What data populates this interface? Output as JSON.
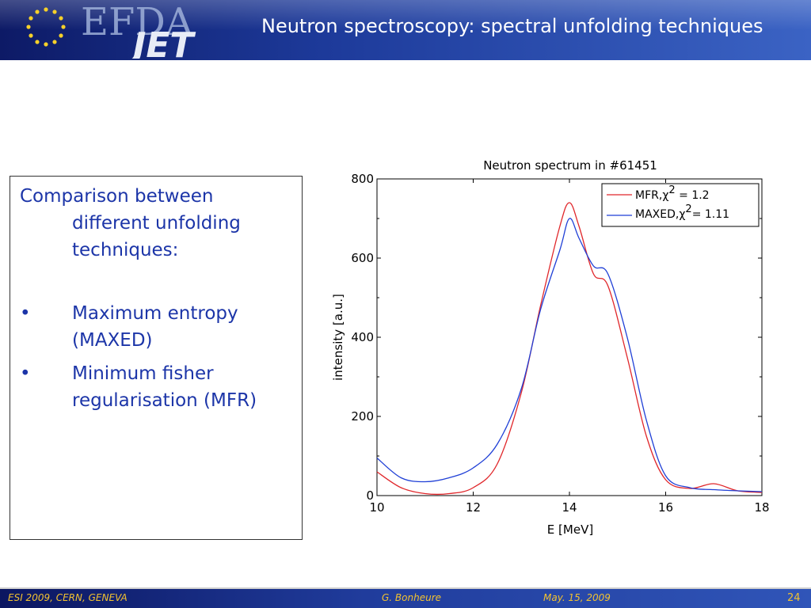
{
  "header": {
    "logo_top": "EFDA",
    "logo_bottom": "JET",
    "title": "Neutron spectroscopy: spectral unfolding techniques"
  },
  "textbox": {
    "intro_line1": "Comparison between",
    "intro_line2": "different unfolding",
    "intro_line3": "techniques:",
    "bullets": [
      {
        "line1": "Maximum entropy",
        "line2": "(MAXED)"
      },
      {
        "line1": "Minimum fisher",
        "line2": "regularisation (MFR)"
      }
    ],
    "bullet_char": "•"
  },
  "chart_data": {
    "type": "line",
    "title": "Neutron spectrum in #61451",
    "xlabel": "E [MeV]",
    "ylabel": "intensity [a.u.]",
    "xlim": [
      10,
      18
    ],
    "ylim": [
      0,
      800
    ],
    "xticks": [
      "10",
      "12",
      "14",
      "16",
      "18"
    ],
    "yticks": [
      "0",
      "200",
      "400",
      "600",
      "800"
    ],
    "grid": false,
    "legend_position": "top-right",
    "series": [
      {
        "name": "MFR",
        "legend_prefix": "MFR,",
        "legend_suffix": " = 1.2",
        "color": "#e0262a",
        "x": [
          10,
          10.5,
          11,
          11.5,
          12,
          12.5,
          13,
          13.4,
          13.8,
          14,
          14.2,
          14.5,
          14.8,
          15.2,
          15.6,
          16,
          16.5,
          17,
          17.5,
          18
        ],
        "y": [
          60,
          20,
          5,
          5,
          20,
          80,
          260,
          480,
          680,
          740,
          680,
          560,
          530,
          350,
          150,
          40,
          18,
          30,
          12,
          8
        ]
      },
      {
        "name": "MAXED",
        "legend_prefix": "MAXED,",
        "legend_suffix": "= 1.11",
        "color": "#1f3fd6",
        "x": [
          10,
          10.5,
          11,
          11.5,
          12,
          12.5,
          13,
          13.4,
          13.8,
          14,
          14.2,
          14.5,
          14.8,
          15.2,
          15.6,
          16,
          16.5,
          17,
          17.5,
          18
        ],
        "y": [
          95,
          45,
          35,
          45,
          70,
          130,
          270,
          470,
          620,
          700,
          650,
          580,
          560,
          400,
          190,
          50,
          20,
          15,
          12,
          10
        ]
      }
    ],
    "chi_symbol": "χ",
    "chi_exponent": "2"
  },
  "footer": {
    "left": "ESI 2009, CERN, GENEVA",
    "author": "G. Bonheure",
    "date": "May. 15, 2009",
    "page": "24"
  },
  "colors": {
    "header_dark": "#0d1a66",
    "header_light": "#3b63c4",
    "text_blue": "#1c35a8",
    "footer_text": "#f2c230"
  }
}
